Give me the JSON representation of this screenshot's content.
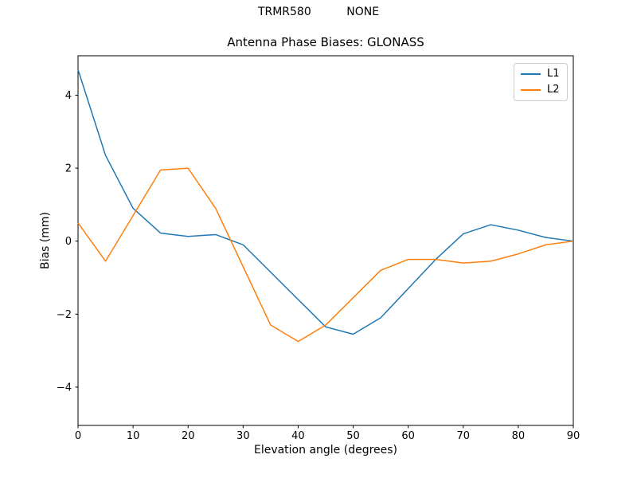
{
  "figure": {
    "suptitle": "TRMR580          NONE"
  },
  "chart_data": {
    "type": "line",
    "title": "Antenna Phase Biases: GLONASS",
    "xlabel": "Elevation angle (degrees)",
    "ylabel": "Bias (mm)",
    "x": [
      0,
      5,
      10,
      15,
      20,
      25,
      30,
      35,
      40,
      45,
      50,
      55,
      60,
      65,
      70,
      75,
      80,
      85,
      90
    ],
    "series": [
      {
        "name": "L1",
        "color": "#1f77b4",
        "values": [
          4.7,
          2.35,
          0.9,
          0.22,
          0.13,
          0.18,
          -0.1,
          -0.85,
          -1.6,
          -2.35,
          -2.55,
          -2.1,
          -1.3,
          -0.5,
          0.2,
          0.45,
          0.3,
          0.1,
          0.0
        ]
      },
      {
        "name": "L2",
        "color": "#ff7f0e",
        "values": [
          0.5,
          -0.55,
          0.7,
          1.95,
          2.0,
          0.9,
          -0.7,
          -2.3,
          -2.75,
          -2.3,
          -1.55,
          -0.8,
          -0.5,
          -0.5,
          -0.6,
          -0.55,
          -0.35,
          -0.1,
          0.0
        ]
      }
    ],
    "xlim": [
      0,
      90
    ],
    "ylim": [
      -5.05,
      5.08
    ],
    "xticks": [
      0,
      10,
      20,
      30,
      40,
      50,
      60,
      70,
      80,
      90
    ],
    "yticks": [
      -4,
      -2,
      0,
      2,
      4
    ],
    "grid": false,
    "legend_position": "upper right",
    "axis_color": "#000000",
    "background_color": "#ffffff"
  }
}
